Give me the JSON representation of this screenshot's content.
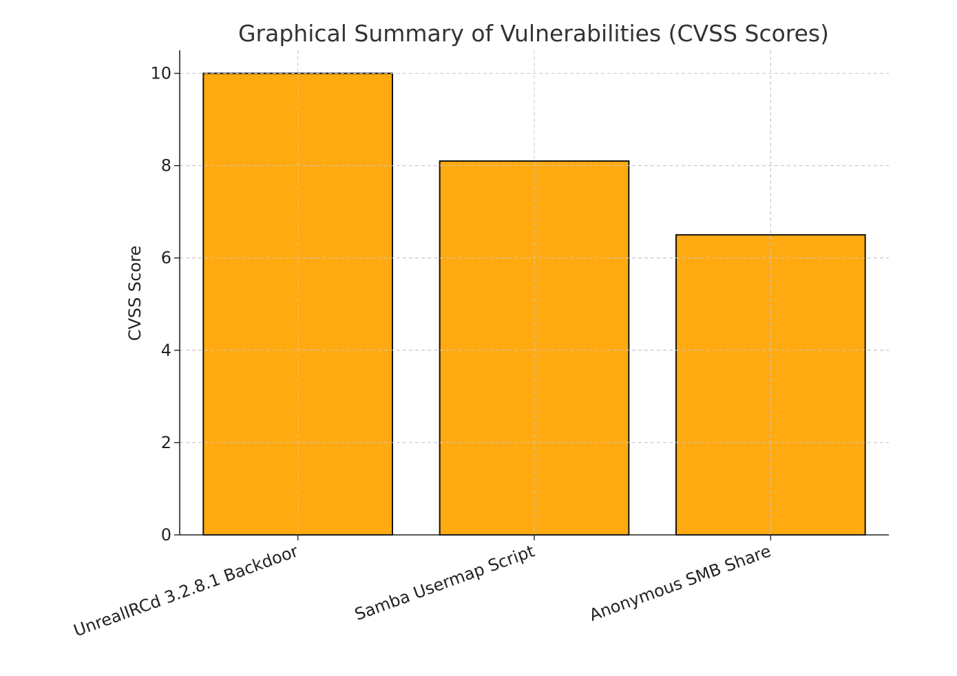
{
  "chart_data": {
    "type": "bar",
    "title": "Graphical Summary of Vulnerabilities (CVSS Scores)",
    "xlabel": "",
    "ylabel": "CVSS Score",
    "categories": [
      "UnrealIRCd 3.2.8.1 Backdoor",
      "Samba Usermap Script",
      "Anonymous SMB Share"
    ],
    "values": [
      10.0,
      8.1,
      6.5
    ],
    "ylim": [
      0,
      10.5
    ],
    "yticks": [
      0,
      2,
      4,
      6,
      8,
      10
    ],
    "grid": true,
    "legend": "none",
    "bar_color": "#FFAA11",
    "bar_edge_color": "#111111"
  }
}
